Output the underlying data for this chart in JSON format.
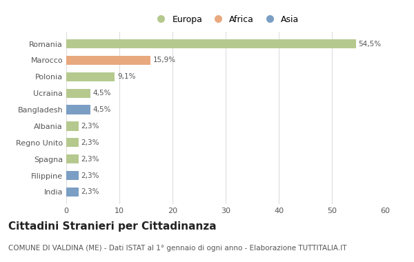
{
  "categories": [
    "Romania",
    "Marocco",
    "Polonia",
    "Ucraina",
    "Bangladesh",
    "Albania",
    "Regno Unito",
    "Spagna",
    "Filippine",
    "India"
  ],
  "values": [
    54.5,
    15.9,
    9.1,
    4.5,
    4.5,
    2.3,
    2.3,
    2.3,
    2.3,
    2.3
  ],
  "labels": [
    "54,5%",
    "15,9%",
    "9,1%",
    "4,5%",
    "4,5%",
    "2,3%",
    "2,3%",
    "2,3%",
    "2,3%",
    "2,3%"
  ],
  "colors": [
    "#b5c98e",
    "#e8a97e",
    "#b5c98e",
    "#b5c98e",
    "#7b9ec4",
    "#b5c98e",
    "#b5c98e",
    "#b5c98e",
    "#7b9ec4",
    "#7b9ec4"
  ],
  "legend_labels": [
    "Europa",
    "Africa",
    "Asia"
  ],
  "legend_colors": [
    "#b5c98e",
    "#e8a97e",
    "#7b9ec4"
  ],
  "xlim": [
    0,
    60
  ],
  "xticks": [
    0,
    10,
    20,
    30,
    40,
    50,
    60
  ],
  "title": "Cittadini Stranieri per Cittadinanza",
  "subtitle": "COMUNE DI VALDINA (ME) - Dati ISTAT al 1° gennaio di ogni anno - Elaborazione TUTTITALIA.IT",
  "background_color": "#ffffff",
  "bar_height": 0.55,
  "title_fontsize": 11,
  "subtitle_fontsize": 7.5,
  "label_fontsize": 7.5,
  "tick_fontsize": 8,
  "legend_fontsize": 9
}
